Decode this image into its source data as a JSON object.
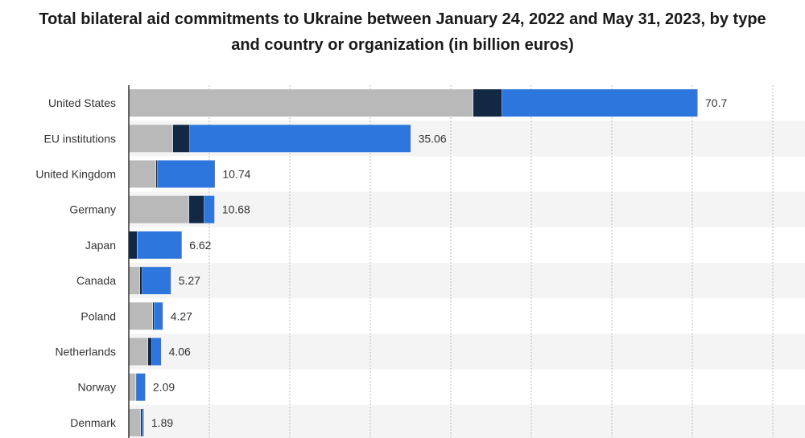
{
  "title": "Total bilateral aid commitments to Ukraine between January 24, 2022 and May 31, 2023, by type and country or organization (in billion euros)",
  "colors": {
    "segment_1": "#b9b9b9",
    "segment_2": "#132843",
    "segment_3": "#2c76de",
    "row_band": "#f4f4f4",
    "grid": "#bcbcbc"
  },
  "chart_data": {
    "type": "bar",
    "orientation": "horizontal",
    "stacked": true,
    "title": "Total bilateral aid commitments to Ukraine between January 24, 2022 and May 31, 2023, by type and country or organization (in billion euros)",
    "categories": [
      "United States",
      "EU institutions",
      "United Kingdom",
      "Germany",
      "Japan",
      "Canada",
      "Poland",
      "Netherlands",
      "Norway",
      "Denmark"
    ],
    "series": [
      {
        "values": [
          42.8,
          5.5,
          3.4,
          7.5,
          0.05,
          1.4,
          3.0,
          2.4,
          0.9,
          1.5
        ]
      },
      {
        "values": [
          3.6,
          2.1,
          0.2,
          1.9,
          1.0,
          0.3,
          0.2,
          0.5,
          0.1,
          0.2
        ]
      },
      {
        "values": [
          24.3,
          27.46,
          7.14,
          1.28,
          5.57,
          3.57,
          1.07,
          1.16,
          1.09,
          0.19
        ]
      }
    ],
    "totals": [
      "70.7",
      "35.06",
      "10.74",
      "10.68",
      "6.62",
      "5.27",
      "4.27",
      "4.06",
      "2.09",
      "1.89"
    ],
    "xlim": [
      0,
      80
    ],
    "grid": true,
    "legend": "none"
  }
}
